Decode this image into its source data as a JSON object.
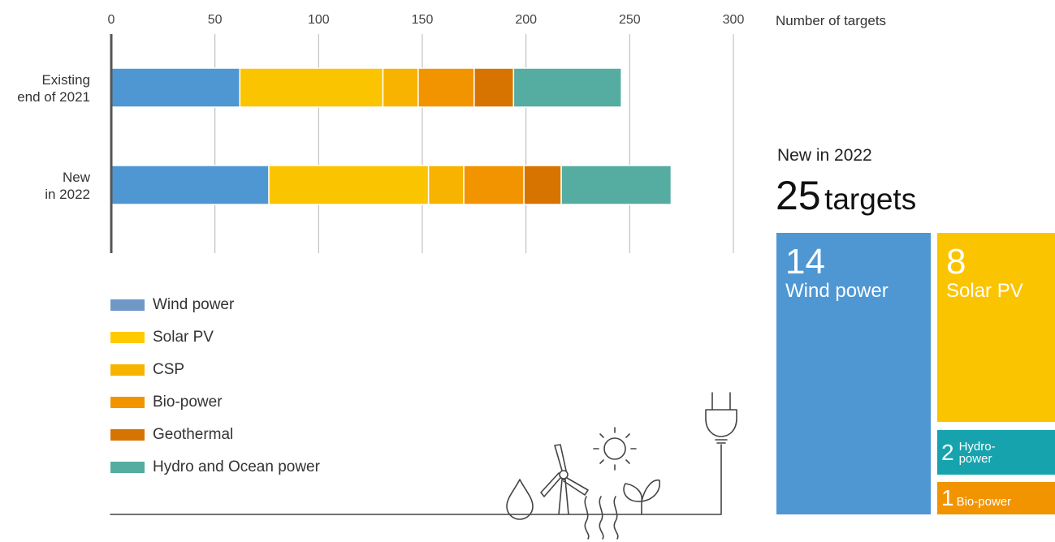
{
  "chart_data": {
    "type": "bar",
    "orientation": "horizontal",
    "stacked": true,
    "categories": [
      "Existing\nend of 2021",
      "New\nin 2022"
    ],
    "series": [
      {
        "name": "Wind power",
        "color": "#4e97d3",
        "values": [
          62,
          76
        ]
      },
      {
        "name": "Solar PV",
        "color": "#fbc400",
        "values": [
          69,
          77
        ]
      },
      {
        "name": "CSP",
        "color": "#f7b300",
        "values": [
          17,
          17
        ]
      },
      {
        "name": "Bio-power",
        "color": "#f29400",
        "values": [
          27,
          29
        ]
      },
      {
        "name": "Geothermal",
        "color": "#d77400",
        "values": [
          19,
          18
        ]
      },
      {
        "name": "Hydro and Ocean power",
        "color": "#55aca0",
        "values": [
          52,
          53
        ]
      }
    ],
    "xlim": [
      0,
      300
    ],
    "xticks": [
      0,
      50,
      100,
      150,
      200,
      250,
      300
    ],
    "xlabel": "Number of targets",
    "grid": true,
    "legend_position": "bottom-left"
  },
  "legend": [
    {
      "label": "Wind power",
      "color": "#6f98c7"
    },
    {
      "label": "Solar PV",
      "color": "#ffcb00"
    },
    {
      "label": "CSP",
      "color": "#f7b300"
    },
    {
      "label": "Bio-power",
      "color": "#f29400"
    },
    {
      "label": "Geothermal",
      "color": "#d77400"
    },
    {
      "label": "Hydro and Ocean power",
      "color": "#55aca0"
    }
  ],
  "summary": {
    "subtitle": "New in 2022",
    "total": "25",
    "unit": "targets",
    "tiles": [
      {
        "value": "14",
        "label": "Wind power",
        "color": "#4e97d3"
      },
      {
        "value": "8",
        "label": "Solar PV",
        "color": "#fbc400"
      },
      {
        "value": "2",
        "label": "Hydro-\npower",
        "color": "#17a3ad"
      },
      {
        "value": "1",
        "label": "Bio-power",
        "color": "#f29400"
      }
    ]
  },
  "illustration": {
    "icons": [
      "water-drop-icon",
      "wind-turbine-icon",
      "sun-icon",
      "geothermal-heat-icon",
      "leaf-icon",
      "power-plug-icon"
    ]
  }
}
